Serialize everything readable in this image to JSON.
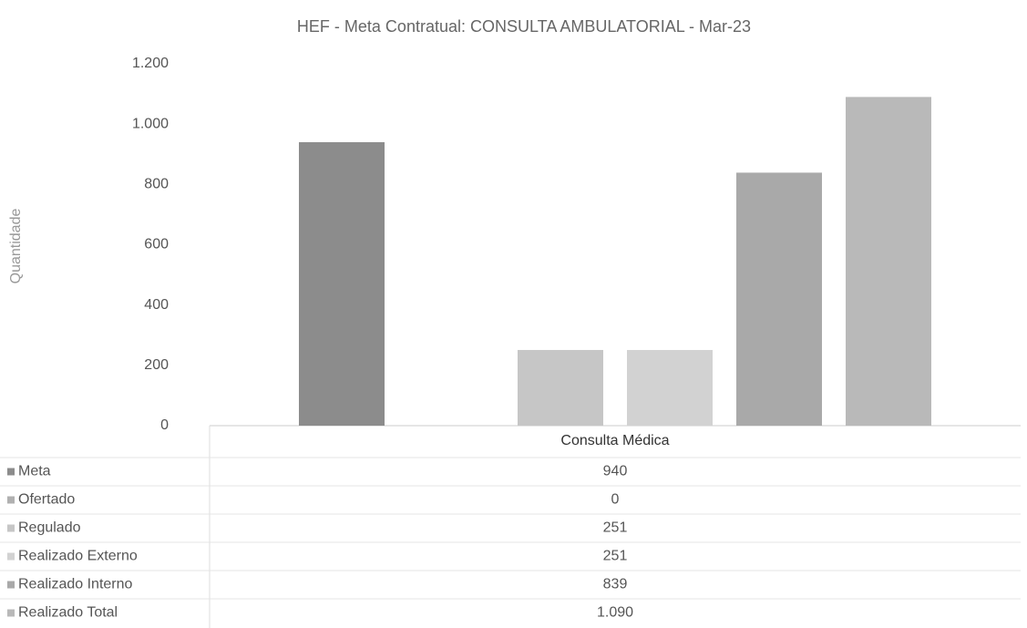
{
  "chart_data": {
    "type": "bar",
    "title": "HEF - Meta Contratual: CONSULTA AMBULATORIAL - Mar-23",
    "y_label": "Quantidade",
    "categories": [
      "Consulta Médica"
    ],
    "series": [
      {
        "name": "Meta",
        "color": "#8c8c8c",
        "values": [
          940
        ],
        "value_labels": [
          "940"
        ]
      },
      {
        "name": "Ofertado",
        "color": "#b0b0b0",
        "values": [
          0
        ],
        "value_labels": [
          "0"
        ]
      },
      {
        "name": "Regulado",
        "color": "#c6c6c6",
        "values": [
          251
        ],
        "value_labels": [
          "251"
        ]
      },
      {
        "name": "Realizado Externo",
        "color": "#d2d2d2",
        "values": [
          251
        ],
        "value_labels": [
          "251"
        ]
      },
      {
        "name": "Realizado Interno",
        "color": "#a9a9a9",
        "values": [
          839
        ],
        "value_labels": [
          "839"
        ]
      },
      {
        "name": "Realizado Total",
        "color": "#b9b9b9",
        "values": [
          1090
        ],
        "value_labels": [
          "1.090"
        ]
      }
    ],
    "ylim": [
      0,
      1200
    ],
    "yticks": [
      0,
      200,
      400,
      600,
      800,
      {
        "value": 1000,
        "label": "1.000"
      },
      {
        "value": 1200,
        "label": "1.200"
      }
    ],
    "grid": false,
    "legend": "table"
  }
}
